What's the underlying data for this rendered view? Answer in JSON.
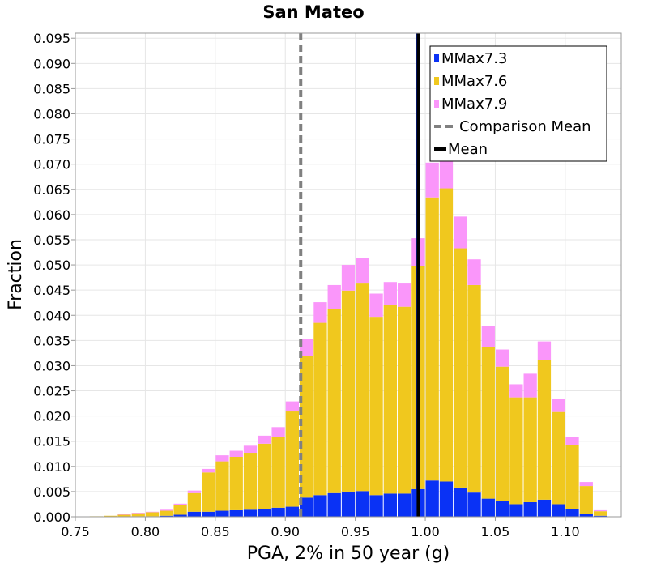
{
  "chart_data": {
    "type": "bar",
    "stacked": true,
    "title": "San Mateo",
    "xlabel": "PGA, 2% in 50 year (g)",
    "ylabel": "Fraction",
    "xlim": [
      0.75,
      1.14
    ],
    "ylim": [
      0.0,
      0.096
    ],
    "grid": true,
    "legend_position": "top-right",
    "bin_width": 0.01,
    "x_ticks": [
      "0.75",
      "0.80",
      "0.85",
      "0.90",
      "0.95",
      "1.00",
      "1.05",
      "1.10"
    ],
    "y_ticks": [
      "0.000",
      "0.005",
      "0.010",
      "0.015",
      "0.020",
      "0.025",
      "0.030",
      "0.035",
      "0.040",
      "0.045",
      "0.050",
      "0.055",
      "0.060",
      "0.065",
      "0.070",
      "0.075",
      "0.080",
      "0.085",
      "0.090",
      "0.095"
    ],
    "x": [
      0.765,
      0.775,
      0.785,
      0.795,
      0.805,
      0.815,
      0.825,
      0.835,
      0.845,
      0.855,
      0.865,
      0.875,
      0.885,
      0.895,
      0.905,
      0.915,
      0.925,
      0.935,
      0.945,
      0.955,
      0.965,
      0.975,
      0.985,
      0.995,
      1.005,
      1.015,
      1.025,
      1.035,
      1.045,
      1.055,
      1.065,
      1.075,
      1.085,
      1.095,
      1.105,
      1.115,
      1.125
    ],
    "series": [
      {
        "name": "MMax7.3",
        "color": "#0a32f5",
        "values": [
          0.0,
          0.0,
          0.0,
          0.0001,
          0.0001,
          0.0002,
          0.0004,
          0.001,
          0.001,
          0.0012,
          0.0013,
          0.0014,
          0.0015,
          0.0018,
          0.002,
          0.0038,
          0.0043,
          0.0047,
          0.005,
          0.0051,
          0.0043,
          0.0046,
          0.0046,
          0.0055,
          0.0072,
          0.007,
          0.0058,
          0.0048,
          0.0036,
          0.0031,
          0.0025,
          0.0029,
          0.0034,
          0.0025,
          0.0015,
          0.0006,
          0.0002
        ]
      },
      {
        "name": "MMax7.6",
        "color": "#f0c81e",
        "values": [
          0.0001,
          0.0002,
          0.0004,
          0.0006,
          0.0008,
          0.001,
          0.002,
          0.0037,
          0.0078,
          0.0098,
          0.0106,
          0.0113,
          0.013,
          0.0141,
          0.0189,
          0.0282,
          0.0342,
          0.0365,
          0.0399,
          0.0412,
          0.0354,
          0.0374,
          0.0371,
          0.0443,
          0.0562,
          0.0582,
          0.0475,
          0.0412,
          0.0301,
          0.0267,
          0.0212,
          0.0208,
          0.0277,
          0.0183,
          0.0127,
          0.0055,
          0.0009
        ]
      },
      {
        "name": "MMax7.9",
        "color": "#fa96fa",
        "values": [
          0.0,
          0.0,
          0.0001,
          0.0001,
          0.0001,
          0.0002,
          0.0002,
          0.0005,
          0.0007,
          0.0012,
          0.0012,
          0.0014,
          0.0016,
          0.0019,
          0.002,
          0.0033,
          0.0041,
          0.0048,
          0.0051,
          0.0051,
          0.0046,
          0.0046,
          0.0046,
          0.0055,
          0.0069,
          0.0074,
          0.0063,
          0.0051,
          0.0041,
          0.0034,
          0.0026,
          0.0047,
          0.0037,
          0.0026,
          0.0017,
          0.0008,
          0.0002
        ]
      }
    ],
    "lines": [
      {
        "name": "Comparison Mean",
        "x": 0.911,
        "color": "#808080",
        "style": "dashed"
      },
      {
        "name": "Mean",
        "x": 0.995,
        "color": "#000000",
        "style": "solid"
      }
    ]
  }
}
